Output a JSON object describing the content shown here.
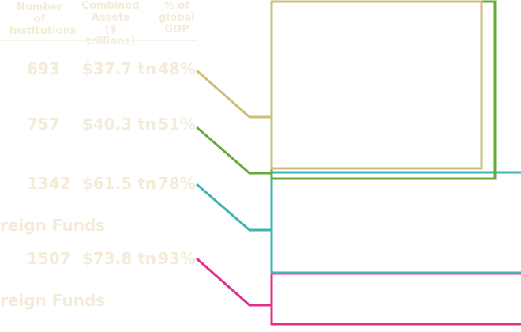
{
  "headers": {
    "col1": [
      "Number of",
      "Institutions"
    ],
    "col2": [
      "Combined",
      "Assets",
      "($ trillions)"
    ],
    "col3": [
      "% of",
      "global",
      "GDP"
    ]
  },
  "rows": [
    {
      "institutions": "693",
      "assets": "$37.7 tn",
      "pct_gdp": "48%",
      "color": "#cdbf78"
    },
    {
      "institutions": "757",
      "assets": "$40.3 tn",
      "pct_gdp": "51%",
      "color": "#68a83b"
    },
    {
      "institutions": "1342",
      "assets": "$61.5 tn",
      "pct_gdp": "78%",
      "color": "#3fb4b1"
    },
    {
      "institutions": "1507",
      "assets": "$73.8 tn",
      "pct_gdp": "93%",
      "color": "#e0308a"
    }
  ],
  "category_labels": [
    "reign Funds",
    "reign Funds"
  ]
}
